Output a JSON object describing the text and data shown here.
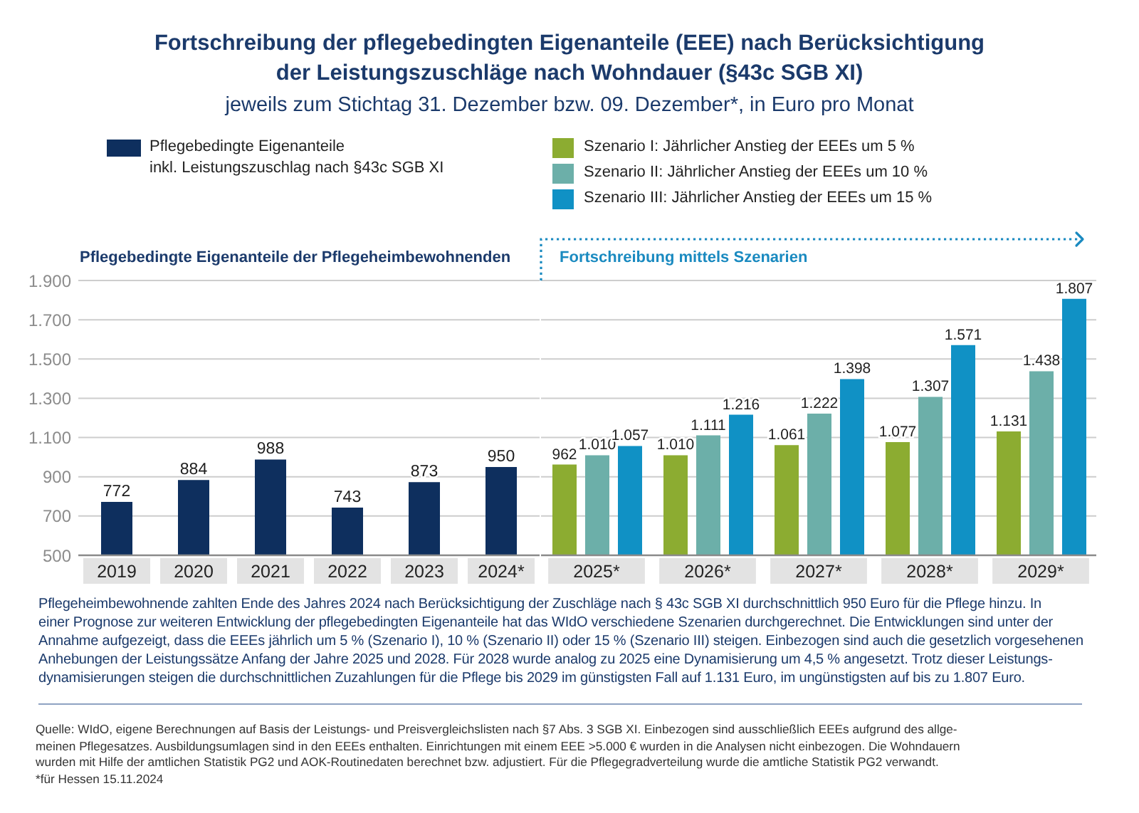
{
  "chart_data": {
    "type": "bar",
    "title": "Fortschreibung der pflegebedingten Eigenanteile (EEE) nach Berücksichtigung\nder Leistungszuschläge nach Wohndauer (§43c SGB XI)",
    "subtitle": "jeweils zum Stichtag 31. Dezember bzw. 09. Dezember*, in Euro pro Monat",
    "categories": [
      "2019",
      "2020",
      "2021",
      "2022",
      "2023",
      "2024*",
      "2025*",
      "2026*",
      "2027*",
      "2028*",
      "2029*"
    ],
    "series": [
      {
        "name": "Pflegebedingte Eigenanteile\ninkl. Leistungszuschlag nach §43c SGB XI",
        "color": "#0e2f5e",
        "values": [
          772,
          884,
          988,
          743,
          873,
          950,
          null,
          null,
          null,
          null,
          null
        ],
        "value_labels": [
          "772",
          "884",
          "988",
          "743",
          "873",
          "950",
          null,
          null,
          null,
          null,
          null
        ]
      },
      {
        "name": "Szenario I: Jährlicher Anstieg der EEEs um 5 %",
        "color": "#8cac31",
        "values": [
          null,
          null,
          null,
          null,
          null,
          null,
          962,
          1010,
          1061,
          1077,
          1131
        ],
        "value_labels": [
          null,
          null,
          null,
          null,
          null,
          null,
          "962",
          "1.010",
          "1.061",
          "1.077",
          "1.131"
        ]
      },
      {
        "name": "Szenario II: Jährlicher Anstieg der EEEs um 10 %",
        "color": "#6cafa9",
        "values": [
          null,
          null,
          null,
          null,
          null,
          null,
          1010,
          1111,
          1222,
          1307,
          1438
        ],
        "value_labels": [
          null,
          null,
          null,
          null,
          null,
          null,
          "1.010",
          "1.111",
          "1.222",
          "1.307",
          "1.438"
        ]
      },
      {
        "name": "Szenario III: Jährlicher Anstieg der EEEs um 15 %",
        "color": "#1091c5",
        "values": [
          null,
          null,
          null,
          null,
          null,
          null,
          1057,
          1216,
          1398,
          1571,
          1807
        ],
        "value_labels": [
          null,
          null,
          null,
          null,
          null,
          null,
          "1.057",
          "1.216",
          "1.398",
          "1.571",
          "1.807"
        ]
      }
    ],
    "ylim": [
      500,
      1900
    ],
    "yticks": [
      500,
      700,
      900,
      {
        "value": 1100,
        "label": "1.100"
      },
      {
        "value": 1300,
        "label": "1.300"
      },
      {
        "value": 1500,
        "label": "1.500"
      },
      {
        "value": 1700,
        "label": "1.700"
      },
      {
        "value": 1900,
        "label": "1.900"
      }
    ],
    "grid": "y",
    "legend": "top",
    "annotations": [
      "Pflegebedingte Eigenanteile der Pflegeheimbewohnenden",
      "Fortschreibung mittels Szenarien",
      "Pflegeheimbewohnende zahlten Ende des Jahres 2024 nach Berücksichtigung der Zuschläge nach § 43c SGB XI durchschnittlich 950 Euro für die Pflege hinzu. In\neiner Prognose zur weiteren Entwicklung der pflegebedingten Eigenanteile hat das WIdO verschiedene Szenarien durchgerechnet. Die Entwicklungen sind unter der\nAnnahme aufgezeigt, dass die EEEs jährlich um 5 % (Szenario I), 10 % (Szenario II) oder 15 % (Szenario III) steigen. Einbezogen sind auch die gesetzlich vorgesehenen\nAnhebungen der Leistungssätze Anfang der Jahre 2025 und 2028. Für 2028 wurde analog zu 2025 eine Dynamisierung um 4,5 % angesetzt. Trotz dieser Leistungs-\ndynamisierungen steigen die durchschnittlichen Zuzahlungen für die Pflege bis 2029 im günstigsten Fall auf 1.131 Euro, im ungünstigsten auf bis zu 1.807 Euro.",
      "Quelle: WIdO, eigene Berechnungen auf Basis der Leistungs- und Preisvergleichslisten nach §7 Abs. 3 SGB XI. Einbezogen sind ausschließlich EEEs aufgrund des allge-\nmeinen Pflegesatzes. Ausbildungsumlagen sind in den EEEs enthalten. Einrichtungen mit einem EEE >5.000 € wurden in die Analysen nicht einbezogen. Die Wohndauern\nwurden mit Hilfe der amtlichen Statistik PG2 und AOK-Routinedaten berechnet bzw. adjustiert. Für die Pflegegradverteilung wurde die amtliche Statistik PG2 verwandt.",
      "*für Hessen 15.11.2024"
    ]
  }
}
